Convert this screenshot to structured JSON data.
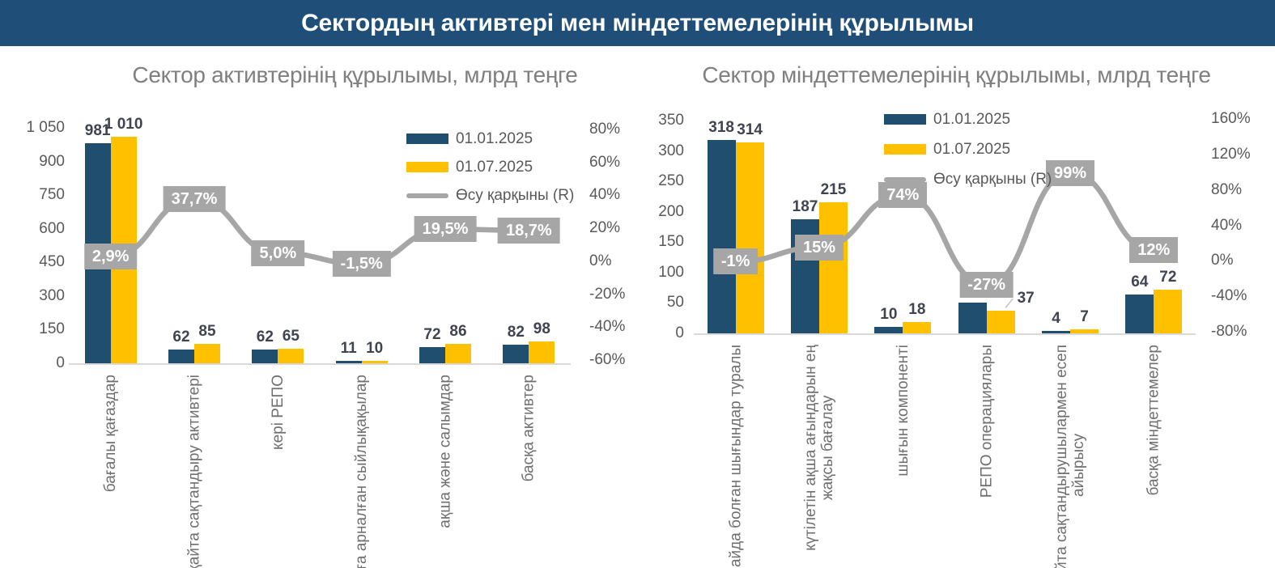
{
  "banner": {
    "title": "Сектордың активтері мен міндеттемелерінің құрылымы"
  },
  "colors": {
    "banner_bg": "#1F4E79",
    "banner_text": "#FFFFFF",
    "series1_navy": "#1F4E6E",
    "series2_yellow": "#FFC000",
    "line_gray": "#A6A6A6",
    "label_box_bg": "#A6A6A6",
    "label_box_text": "#FFFFFF",
    "axis_text": "#595959",
    "category_text": "#6F6F6F",
    "title_text": "#7F7F7F",
    "value_label_text": "#3F4450",
    "baseline": "#D9D9D9",
    "leader_line": "#BFBFBF"
  },
  "chart_data": [
    {
      "type": "bar",
      "subtype": "grouped columns with growth-rate line on secondary axis",
      "title": "Сектор активтерінің құрылымы, млрд теңге",
      "categories": [
        [
          "бағалы қағаздар"
        ],
        [
          "қайта сақтандыру активтері"
        ],
        [
          "кері РЕПО"
        ],
        [
          "алуға арналған сыйлықақылар"
        ],
        [
          "ақша және салымдар"
        ],
        [
          "басқа активтер"
        ]
      ],
      "series": [
        {
          "name": "01.01.2025",
          "color": "series1_navy",
          "values": [
            981,
            62,
            62,
            11,
            72,
            82
          ],
          "labels": [
            "981",
            "62",
            "62",
            "11",
            "72",
            "82"
          ]
        },
        {
          "name": "01.07.2025",
          "color": "series2_yellow",
          "values": [
            1010,
            85,
            65,
            10,
            86,
            98
          ],
          "labels": [
            "1 010",
            "85",
            "65",
            "10",
            "86",
            "98"
          ]
        }
      ],
      "line_series": {
        "name": "Өсу қарқыны (R)",
        "axis": "right",
        "values": [
          2.9,
          37.7,
          5.0,
          -1.5,
          19.5,
          18.7
        ],
        "labels": [
          "2,9%",
          "37,7%",
          "5,0%",
          "-1,5%",
          "19,5%",
          "18,7%"
        ]
      },
      "left_axis": {
        "min": 0,
        "max": 1050,
        "ticks": [
          "0",
          "150",
          "300",
          "450",
          "600",
          "750",
          "900",
          "1 050"
        ]
      },
      "right_axis": {
        "min": -60,
        "max": 80,
        "ticks": [
          "-60%",
          "-40%",
          "-20%",
          "0%",
          "20%",
          "40%",
          "60%",
          "80%"
        ]
      },
      "label_offsets": {},
      "legend_position": "inside top-right",
      "grid": false,
      "xlabel": "",
      "ylabel": ""
    },
    {
      "type": "bar",
      "subtype": "grouped columns with growth-rate line on secondary axis",
      "title": "Сектор міндеттемелерінің құрылымы, млрд теңге",
      "categories": [
        [
          "пайда болған шығындар туралы"
        ],
        [
          "күтілетін ақша ағындарын ең",
          "жақсы бағалау"
        ],
        [
          "шығын компоненті"
        ],
        [
          "РЕПО операциялары"
        ],
        [
          "қайта сақтандырушылармен есеп",
          "айырысу"
        ],
        [
          "басқа міндеттемелер"
        ]
      ],
      "series": [
        {
          "name": "01.01.2025",
          "color": "series1_navy",
          "values": [
            318,
            187,
            10,
            51,
            4,
            64
          ],
          "labels": [
            "318",
            "187",
            "10",
            "51",
            "4",
            "64"
          ]
        },
        {
          "name": "01.07.2025",
          "color": "series2_yellow",
          "values": [
            314,
            215,
            18,
            37,
            7,
            72
          ],
          "labels": [
            "314",
            "215",
            "18",
            "37",
            "7",
            "72"
          ]
        }
      ],
      "line_series": {
        "name": "Өсу қарқыны (R)",
        "axis": "right",
        "values": [
          -1,
          15,
          74,
          -27,
          99,
          12
        ],
        "labels": [
          "-1%",
          "15%",
          "74%",
          "-27%",
          "99%",
          "12%"
        ]
      },
      "left_axis": {
        "min": 0,
        "max": 350,
        "ticks": [
          "0",
          "50",
          "100",
          "150",
          "200",
          "250",
          "300",
          "350"
        ]
      },
      "right_axis": {
        "min": -80,
        "max": 160,
        "ticks": [
          "-80%",
          "-40%",
          "0%",
          "40%",
          "80%",
          "120%",
          "160%"
        ]
      },
      "label_offsets": {
        "1": {
          "3": [
            31,
            0
          ]
        }
      },
      "legend_position": "inside top-right",
      "grid": false,
      "xlabel": "",
      "ylabel": ""
    }
  ]
}
